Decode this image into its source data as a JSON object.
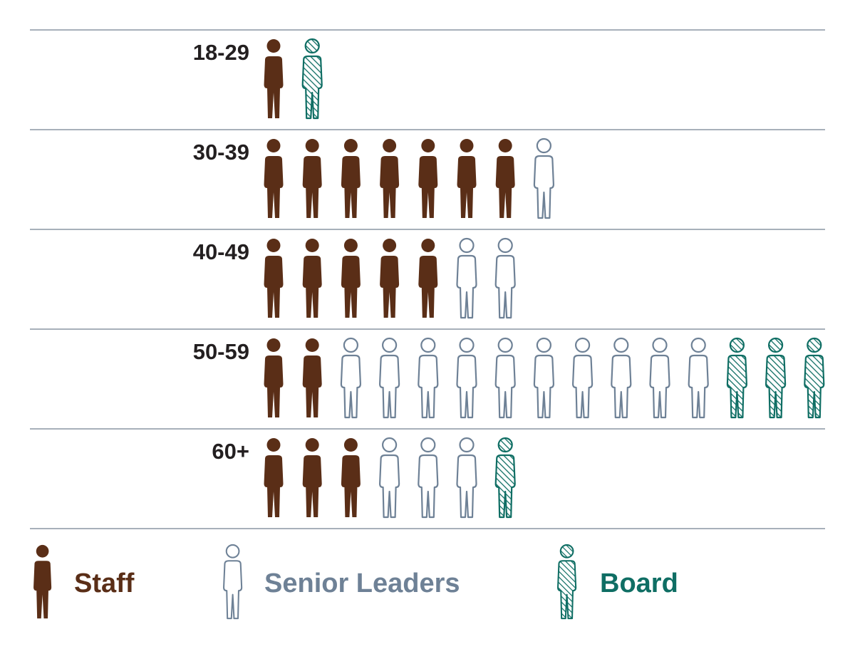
{
  "chart_data": {
    "type": "pictogram",
    "categories": [
      "18-29",
      "30-39",
      "40-49",
      "50-59",
      "60+"
    ],
    "series": [
      {
        "name": "Staff",
        "values": [
          1,
          7,
          5,
          2,
          3
        ],
        "color": "#5a2e17",
        "style": "solid"
      },
      {
        "name": "Senior Leaders",
        "values": [
          0,
          1,
          2,
          10,
          3
        ],
        "color": "#6e8196",
        "style": "outline"
      },
      {
        "name": "Board",
        "values": [
          1,
          0,
          0,
          3,
          1
        ],
        "color": "#0f6e64",
        "style": "hatched"
      }
    ],
    "legend_position": "bottom",
    "separator_color": "#8a96a3"
  }
}
